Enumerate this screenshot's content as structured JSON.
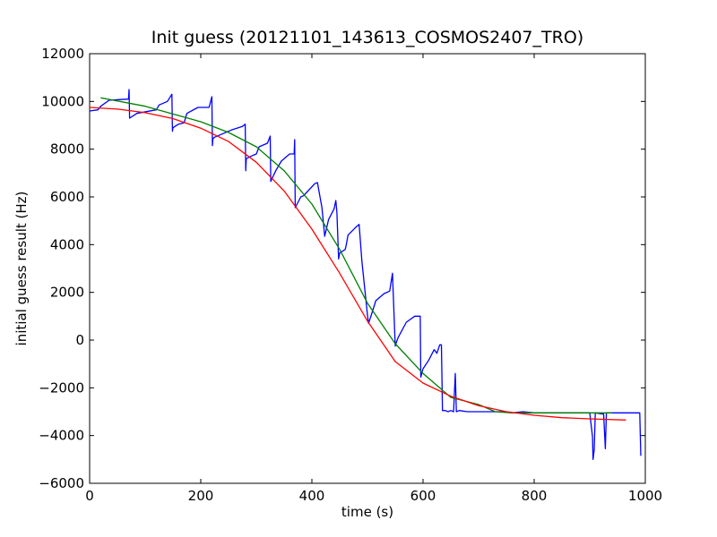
{
  "chart_data": {
    "type": "line",
    "title": "Init guess (20121101_143613_COSMOS2407_TRO)",
    "xlabel": "time (s)",
    "ylabel": "initial guess result (Hz)",
    "xlim": [
      0,
      1000
    ],
    "ylim": [
      -6000,
      12000
    ],
    "xticks": [
      0,
      200,
      400,
      600,
      800,
      1000
    ],
    "yticks": [
      -6000,
      -4000,
      -2000,
      0,
      2000,
      4000,
      6000,
      8000,
      10000,
      12000
    ],
    "grid": false,
    "legend": "none",
    "series": [
      {
        "color": "#0000ff",
        "x": [
          0,
          15,
          20,
          35,
          70,
          71,
          72,
          85,
          120,
          125,
          140,
          148,
          149,
          150,
          160,
          170,
          175,
          195,
          215,
          220,
          221,
          222,
          225,
          240,
          255,
          275,
          280,
          281,
          282,
          290,
          300,
          305,
          320,
          325,
          326,
          327,
          335,
          345,
          360,
          368,
          369,
          370,
          380,
          385,
          395,
          405,
          410,
          418,
          423,
          430,
          440,
          443,
          445,
          448,
          450,
          460,
          462,
          465,
          480,
          485,
          490,
          500,
          502,
          507,
          515,
          530,
          540,
          545,
          550,
          552,
          555,
          570,
          585,
          595,
          596,
          600,
          610,
          620,
          625,
          630,
          633,
          635,
          640,
          645,
          650,
          655,
          658,
          660,
          665,
          680,
          700,
          750,
          760,
          780,
          800,
          900,
          905,
          906,
          908,
          910,
          925,
          928,
          930,
          960,
          990,
          992
        ],
        "y": [
          9600,
          9650,
          9800,
          10050,
          10100,
          10500,
          9300,
          9500,
          9650,
          9850,
          10000,
          10300,
          8750,
          8900,
          9050,
          9100,
          9500,
          9750,
          9750,
          10200,
          8150,
          8450,
          8500,
          8650,
          8800,
          8950,
          9050,
          7100,
          7600,
          7700,
          7800,
          8100,
          8250,
          8550,
          6650,
          6700,
          7100,
          7500,
          7800,
          7800,
          8400,
          5550,
          6000,
          6050,
          6300,
          6550,
          6600,
          5550,
          4350,
          5050,
          5500,
          5850,
          5350,
          3400,
          3650,
          3800,
          4000,
          4400,
          4750,
          4850,
          3300,
          1050,
          700,
          1050,
          1650,
          1950,
          2050,
          2800,
          -250,
          -100,
          100,
          750,
          1000,
          1000,
          -1550,
          -1200,
          -850,
          -400,
          -550,
          -200,
          -200,
          -2950,
          -2950,
          -3000,
          -2950,
          -3000,
          -1400,
          -3000,
          -2950,
          -3000,
          -3000,
          -3000,
          -3050,
          -3000,
          -3050,
          -3050,
          -4050,
          -5000,
          -4600,
          -3050,
          -3100,
          -4550,
          -3050,
          -3050,
          -3050,
          -4850
        ]
      },
      {
        "color": "#008000",
        "x": [
          20,
          100,
          200,
          250,
          300,
          350,
          400,
          450,
          500,
          550,
          600,
          650,
          700,
          730,
          760,
          800,
          850,
          900,
          940
        ],
        "y": [
          10150,
          9800,
          9150,
          8700,
          8100,
          7100,
          5700,
          3800,
          1550,
          -150,
          -1400,
          -2400,
          -2700,
          -3000,
          -3050,
          -3050,
          -3050,
          -3050,
          -3050
        ]
      },
      {
        "color": "#ff0000",
        "x": [
          0,
          50,
          100,
          150,
          200,
          250,
          300,
          350,
          400,
          450,
          500,
          550,
          600,
          650,
          700,
          750,
          800,
          850,
          900,
          965
        ],
        "y": [
          9750,
          9680,
          9530,
          9280,
          8880,
          8320,
          7450,
          6250,
          4650,
          2800,
          800,
          -900,
          -1800,
          -2350,
          -2750,
          -3000,
          -3150,
          -3250,
          -3300,
          -3350
        ]
      }
    ]
  }
}
